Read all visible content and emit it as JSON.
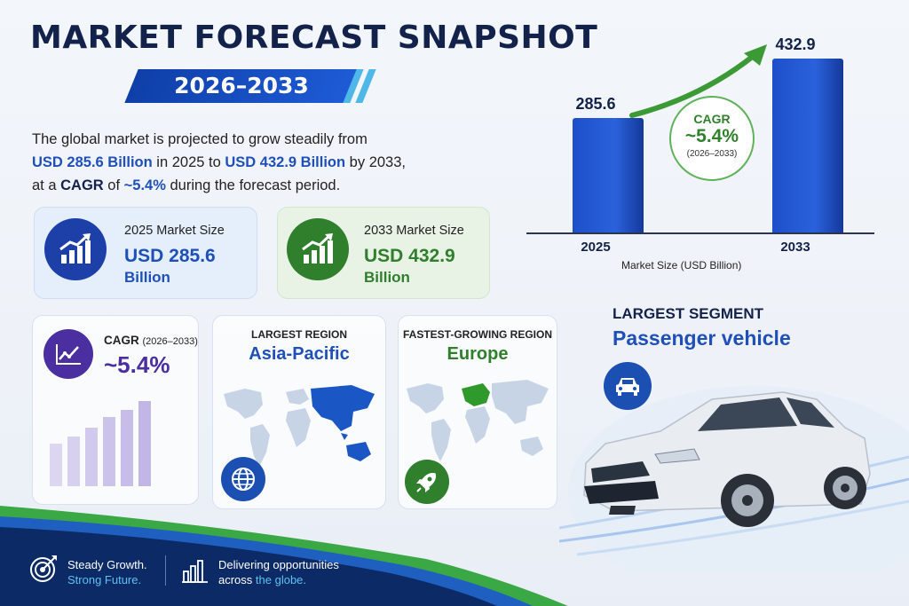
{
  "header": {
    "title": "MARKET FORECAST SNAPSHOT",
    "period": "2026–2033"
  },
  "intro": {
    "line1": "The global market is projected to grow steadily from",
    "value_2025": "USD 285.6 Billion",
    "in_2025": " in 2025 to ",
    "value_2033": "USD 432.9 Billion",
    "by_2033": " by 2033,",
    "line3_a": "at a ",
    "cagr_word": "CAGR",
    "line3_b": " of ",
    "cagr_value": "~5.4%",
    "line3_c": " during the forecast period."
  },
  "cards": {
    "market_2025": {
      "label": "2025 Market Size",
      "value": "USD 285.6",
      "unit": "Billion",
      "icon": "growth-chart-icon"
    },
    "market_2033": {
      "label": "2033 Market Size",
      "value": "USD 432.9",
      "unit": "Billion",
      "icon": "growth-chart-icon"
    },
    "cagr": {
      "label": "CAGR",
      "period": "(2026–2033)",
      "value": "~5.4%",
      "icon": "trend-line-icon"
    },
    "largest_region": {
      "label": "LARGEST REGION",
      "value": "Asia-Pacific",
      "icon": "globe-icon"
    },
    "fastest_region": {
      "label": "FASTEST-GROWING REGION",
      "value": "Europe",
      "icon": "rocket-icon"
    }
  },
  "segment": {
    "label": "LARGEST SEGMENT",
    "value": "Passenger vehicle",
    "icon": "car-icon"
  },
  "chart_data": {
    "type": "bar",
    "categories": [
      "2025",
      "2033"
    ],
    "values": [
      285.6,
      432.9
    ],
    "xlabel": "Market Size (USD Billion)",
    "ylabel": "",
    "ylim": [
      0,
      450
    ],
    "annotation": {
      "label": "CAGR",
      "value": "~5.4%",
      "period": "(2026–2033)"
    }
  },
  "footer": {
    "left_line1": "Steady Growth.",
    "left_line2": "Strong Future.",
    "right_line1": "Delivering opportunities",
    "right_line2_a": "across ",
    "right_line2_b": "the globe."
  },
  "colors": {
    "navy": "#13224a",
    "blue": "#1f4fb8",
    "green": "#3a8a34",
    "purple": "#4b2ea0",
    "sky": "#5fc2f0"
  }
}
